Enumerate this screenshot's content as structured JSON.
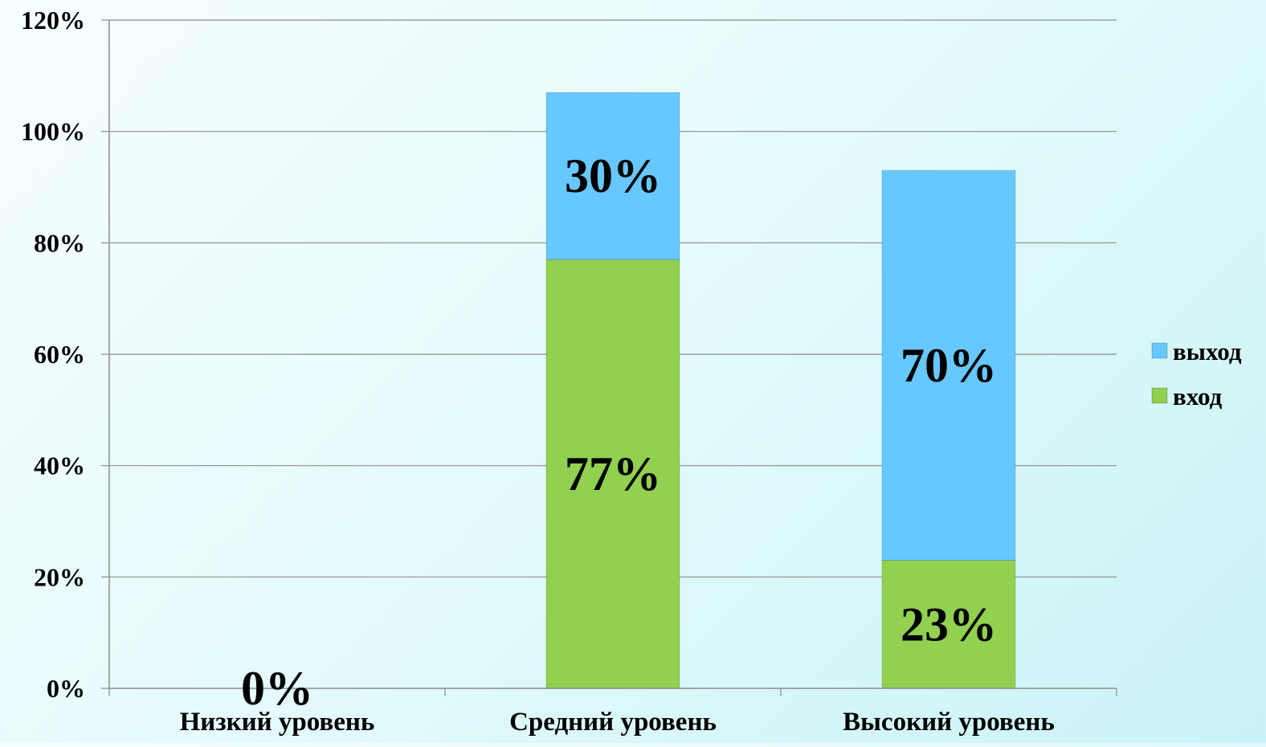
{
  "chart_data": {
    "type": "bar",
    "stacked": true,
    "title": "",
    "xlabel": "",
    "ylabel": "",
    "categories": [
      "Низкий уровень",
      "Средний уровень",
      "Высокий уровень"
    ],
    "series": [
      {
        "name": "вход",
        "color": "#92d050",
        "values": [
          0,
          77,
          23
        ],
        "labels": [
          "0%",
          "77%",
          "23%"
        ]
      },
      {
        "name": "выход",
        "color": "#66c8ff",
        "values": [
          0,
          30,
          70
        ],
        "labels": [
          "",
          "30%",
          "70%"
        ]
      }
    ],
    "ylim": [
      0,
      120
    ],
    "yticks": [
      0,
      20,
      40,
      60,
      80,
      100,
      120
    ],
    "ytick_labels": [
      "0%",
      "20%",
      "40%",
      "60%",
      "80%",
      "100%",
      "120%"
    ],
    "grid": true,
    "legend_position": "right",
    "legend_order": [
      "выход",
      "вход"
    ]
  }
}
